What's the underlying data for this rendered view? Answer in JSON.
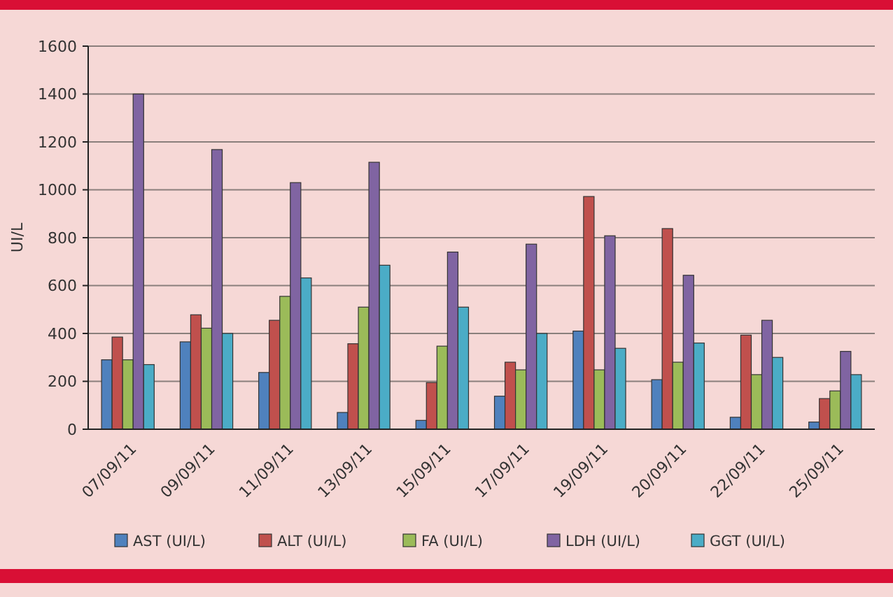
{
  "chart_data": {
    "type": "bar",
    "ylabel": "UI/L",
    "categories": [
      "07/09/11",
      "09/09/11",
      "11/09/11",
      "13/09/11",
      "15/09/11",
      "17/09/11",
      "19/09/11",
      "20/09/11",
      "22/09/11",
      "25/09/11"
    ],
    "series": [
      {
        "name": "AST (UI/L)",
        "color": "#4f81bd",
        "values": [
          290,
          365,
          237,
          70,
          37,
          138,
          410,
          207,
          50,
          30
        ]
      },
      {
        "name": "ALT (UI/L)",
        "color": "#c0504d",
        "values": [
          385,
          478,
          455,
          357,
          195,
          280,
          972,
          838,
          393,
          128
        ]
      },
      {
        "name": "FA (UI/L)",
        "color": "#9bbb59",
        "values": [
          290,
          422,
          555,
          510,
          347,
          248,
          248,
          280,
          228,
          160
        ]
      },
      {
        "name": "LDH (UI/L)",
        "color": "#8064a2",
        "values": [
          1400,
          1168,
          1030,
          1115,
          740,
          773,
          808,
          643,
          455,
          325
        ]
      },
      {
        "name": "GGT (UI/L)",
        "color": "#4bacc6",
        "values": [
          270,
          400,
          632,
          685,
          510,
          400,
          338,
          360,
          300,
          228
        ]
      }
    ],
    "ylim": [
      0,
      1600
    ],
    "yticks": [
      0,
      200,
      400,
      600,
      800,
      1000,
      1200,
      1400,
      1600
    ],
    "grid": "y",
    "legend": "bottom"
  }
}
